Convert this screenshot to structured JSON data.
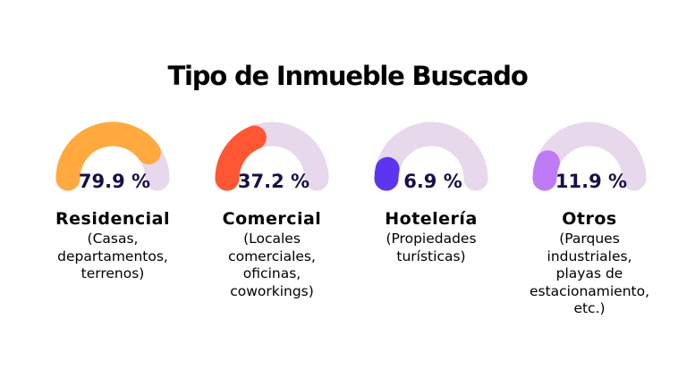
{
  "chart_data": {
    "type": "gauge",
    "title": "Tipo de Inmueble Buscado",
    "unit": "%",
    "range": [
      0,
      100
    ],
    "track_color": "#E8D8EC",
    "text_color": "#1A0E4A",
    "items": [
      {
        "category": "Residencial",
        "value": 79.9,
        "label": "79.9 %",
        "color": "#FFA93F",
        "description": [
          "(Casas,",
          "departamentos,",
          "terrenos)"
        ]
      },
      {
        "category": "Comercial",
        "value": 37.2,
        "label": "37.2 %",
        "color": "#FF5733",
        "description": [
          "(Locales",
          "comerciales,",
          "oficinas,",
          "coworkings)"
        ]
      },
      {
        "category": "Hotelería",
        "value": 6.9,
        "label": "6.9 %",
        "color": "#5B35F0",
        "description": [
          "(Propiedades",
          "turísticas)"
        ]
      },
      {
        "category": "Otros",
        "value": 11.9,
        "label": "11.9 %",
        "color": "#BE7BF5",
        "description": [
          "(Parques",
          "industriales,",
          "playas de",
          "estacionamiento,",
          "etc.)"
        ]
      }
    ]
  }
}
